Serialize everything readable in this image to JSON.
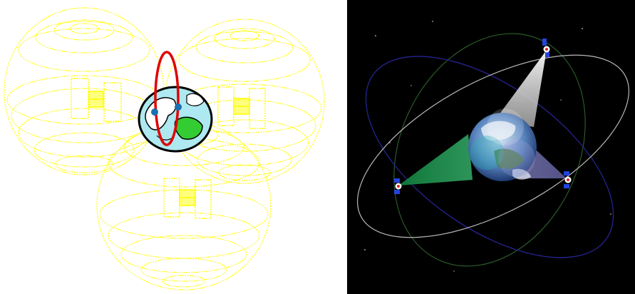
{
  "left_panel": {
    "background": "#ffffff",
    "sphere_color": "#ffff00",
    "orbit_color": "#e00000",
    "earth_ocean": "#aee8f0",
    "earth_land": "#33cc33",
    "ground_station_color": "#1a6fb0",
    "satellites": [
      "satellite-icon",
      "satellite-icon",
      "satellite-icon"
    ]
  },
  "right_panel": {
    "background": "#000000",
    "orbit_colors": [
      "#b8b8b8",
      "#22228a",
      "#2a5a2a"
    ],
    "beam_colors": [
      "#e0e0e0",
      "#1a9a4a",
      "#6a6aa8"
    ],
    "satellites": [
      "satellite-icon",
      "satellite-icon",
      "satellite-icon"
    ]
  }
}
